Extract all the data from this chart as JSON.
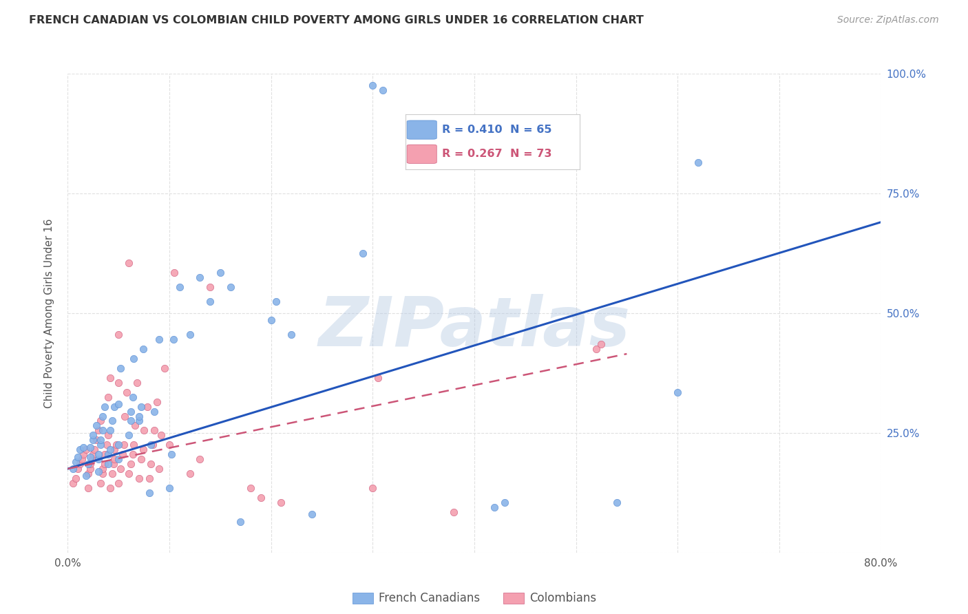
{
  "title": "FRENCH CANADIAN VS COLOMBIAN CHILD POVERTY AMONG GIRLS UNDER 16 CORRELATION CHART",
  "source": "Source: ZipAtlas.com",
  "ylabel": "Child Poverty Among Girls Under 16",
  "x_min": 0.0,
  "x_max": 0.8,
  "y_min": 0.0,
  "y_max": 1.0,
  "y_ticks": [
    0.0,
    0.25,
    0.5,
    0.75,
    1.0
  ],
  "y_tick_labels": [
    "",
    "25.0%",
    "50.0%",
    "75.0%",
    "100.0%"
  ],
  "x_ticks": [
    0.0,
    0.1,
    0.2,
    0.3,
    0.4,
    0.5,
    0.6,
    0.7,
    0.8
  ],
  "x_tick_labels": [
    "0.0%",
    "",
    "",
    "",
    "",
    "",
    "",
    "",
    "80.0%"
  ],
  "french_canadians": {
    "color": "#8ab4e8",
    "border_color": "#5a8fd4",
    "R": 0.41,
    "N": 65,
    "label": "French Canadians",
    "trend_color": "#2255bb",
    "trend_x": [
      0.0,
      0.8
    ],
    "trend_y": [
      0.175,
      0.69
    ],
    "points": [
      [
        0.005,
        0.175
      ],
      [
        0.008,
        0.19
      ],
      [
        0.01,
        0.2
      ],
      [
        0.012,
        0.215
      ],
      [
        0.015,
        0.22
      ],
      [
        0.018,
        0.16
      ],
      [
        0.02,
        0.185
      ],
      [
        0.022,
        0.2
      ],
      [
        0.022,
        0.22
      ],
      [
        0.025,
        0.235
      ],
      [
        0.025,
        0.245
      ],
      [
        0.028,
        0.265
      ],
      [
        0.03,
        0.17
      ],
      [
        0.03,
        0.195
      ],
      [
        0.03,
        0.205
      ],
      [
        0.032,
        0.225
      ],
      [
        0.032,
        0.235
      ],
      [
        0.034,
        0.255
      ],
      [
        0.034,
        0.285
      ],
      [
        0.036,
        0.305
      ],
      [
        0.04,
        0.185
      ],
      [
        0.04,
        0.205
      ],
      [
        0.042,
        0.215
      ],
      [
        0.042,
        0.255
      ],
      [
        0.044,
        0.275
      ],
      [
        0.046,
        0.305
      ],
      [
        0.05,
        0.195
      ],
      [
        0.05,
        0.225
      ],
      [
        0.05,
        0.31
      ],
      [
        0.052,
        0.385
      ],
      [
        0.06,
        0.245
      ],
      [
        0.062,
        0.275
      ],
      [
        0.062,
        0.295
      ],
      [
        0.064,
        0.325
      ],
      [
        0.065,
        0.405
      ],
      [
        0.07,
        0.275
      ],
      [
        0.07,
        0.285
      ],
      [
        0.072,
        0.305
      ],
      [
        0.074,
        0.425
      ],
      [
        0.08,
        0.125
      ],
      [
        0.082,
        0.225
      ],
      [
        0.085,
        0.295
      ],
      [
        0.09,
        0.445
      ],
      [
        0.1,
        0.135
      ],
      [
        0.102,
        0.205
      ],
      [
        0.104,
        0.445
      ],
      [
        0.11,
        0.555
      ],
      [
        0.12,
        0.455
      ],
      [
        0.13,
        0.575
      ],
      [
        0.14,
        0.525
      ],
      [
        0.15,
        0.585
      ],
      [
        0.16,
        0.555
      ],
      [
        0.17,
        0.065
      ],
      [
        0.2,
        0.485
      ],
      [
        0.205,
        0.525
      ],
      [
        0.22,
        0.455
      ],
      [
        0.24,
        0.08
      ],
      [
        0.29,
        0.625
      ],
      [
        0.3,
        0.975
      ],
      [
        0.31,
        0.965
      ],
      [
        0.42,
        0.095
      ],
      [
        0.43,
        0.105
      ],
      [
        0.54,
        0.105
      ],
      [
        0.6,
        0.335
      ],
      [
        0.62,
        0.815
      ]
    ]
  },
  "colombians": {
    "color": "#f4a0b0",
    "border_color": "#d06080",
    "R": 0.267,
    "N": 73,
    "label": "Colombians",
    "trend_color": "#cc5577",
    "trend_x": [
      0.0,
      0.55
    ],
    "trend_y": [
      0.175,
      0.415
    ],
    "points": [
      [
        0.005,
        0.145
      ],
      [
        0.008,
        0.155
      ],
      [
        0.01,
        0.175
      ],
      [
        0.012,
        0.185
      ],
      [
        0.014,
        0.195
      ],
      [
        0.015,
        0.205
      ],
      [
        0.018,
        0.215
      ],
      [
        0.02,
        0.135
      ],
      [
        0.02,
        0.165
      ],
      [
        0.022,
        0.175
      ],
      [
        0.022,
        0.185
      ],
      [
        0.024,
        0.195
      ],
      [
        0.025,
        0.205
      ],
      [
        0.026,
        0.215
      ],
      [
        0.028,
        0.235
      ],
      [
        0.03,
        0.255
      ],
      [
        0.032,
        0.275
      ],
      [
        0.032,
        0.145
      ],
      [
        0.034,
        0.165
      ],
      [
        0.034,
        0.175
      ],
      [
        0.036,
        0.185
      ],
      [
        0.036,
        0.205
      ],
      [
        0.038,
        0.225
      ],
      [
        0.04,
        0.245
      ],
      [
        0.04,
        0.325
      ],
      [
        0.042,
        0.365
      ],
      [
        0.042,
        0.135
      ],
      [
        0.044,
        0.165
      ],
      [
        0.045,
        0.185
      ],
      [
        0.046,
        0.195
      ],
      [
        0.046,
        0.215
      ],
      [
        0.048,
        0.225
      ],
      [
        0.05,
        0.355
      ],
      [
        0.05,
        0.455
      ],
      [
        0.05,
        0.145
      ],
      [
        0.052,
        0.175
      ],
      [
        0.054,
        0.205
      ],
      [
        0.055,
        0.225
      ],
      [
        0.056,
        0.285
      ],
      [
        0.058,
        0.335
      ],
      [
        0.06,
        0.605
      ],
      [
        0.06,
        0.165
      ],
      [
        0.062,
        0.185
      ],
      [
        0.064,
        0.205
      ],
      [
        0.065,
        0.225
      ],
      [
        0.066,
        0.265
      ],
      [
        0.068,
        0.355
      ],
      [
        0.07,
        0.155
      ],
      [
        0.072,
        0.195
      ],
      [
        0.074,
        0.215
      ],
      [
        0.075,
        0.255
      ],
      [
        0.078,
        0.305
      ],
      [
        0.08,
        0.155
      ],
      [
        0.082,
        0.185
      ],
      [
        0.084,
        0.225
      ],
      [
        0.085,
        0.255
      ],
      [
        0.088,
        0.315
      ],
      [
        0.09,
        0.175
      ],
      [
        0.092,
        0.245
      ],
      [
        0.095,
        0.385
      ],
      [
        0.1,
        0.225
      ],
      [
        0.105,
        0.585
      ],
      [
        0.12,
        0.165
      ],
      [
        0.13,
        0.195
      ],
      [
        0.14,
        0.555
      ],
      [
        0.18,
        0.135
      ],
      [
        0.19,
        0.115
      ],
      [
        0.21,
        0.105
      ],
      [
        0.3,
        0.135
      ],
      [
        0.305,
        0.365
      ],
      [
        0.38,
        0.085
      ],
      [
        0.52,
        0.425
      ],
      [
        0.525,
        0.435
      ]
    ]
  },
  "watermark": "ZIPatlas",
  "background_color": "#ffffff",
  "grid_color": "#e0e0e0"
}
